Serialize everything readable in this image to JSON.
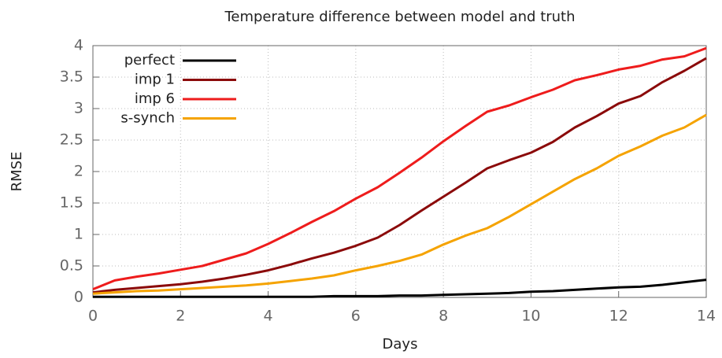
{
  "chart_data": {
    "type": "line",
    "title": "Temperature difference between model and truth",
    "x_label": "Days",
    "y_label": "RMSE",
    "x": [
      0,
      0.5,
      1,
      1.5,
      2,
      2.5,
      3,
      3.5,
      4,
      4.5,
      5,
      5.5,
      6,
      6.5,
      7,
      7.5,
      8,
      8.5,
      9,
      9.5,
      10,
      10.5,
      11,
      11.5,
      12,
      12.5,
      13,
      13.5,
      14
    ],
    "series": [
      {
        "name": "perfect",
        "color": "#000000",
        "values": [
          0.01,
          0.01,
          0.01,
          0.01,
          0.01,
          0.01,
          0.01,
          0.01,
          0.01,
          0.01,
          0.01,
          0.02,
          0.02,
          0.02,
          0.03,
          0.03,
          0.04,
          0.05,
          0.06,
          0.07,
          0.09,
          0.1,
          0.12,
          0.14,
          0.16,
          0.17,
          0.2,
          0.24,
          0.28
        ]
      },
      {
        "name": "imp 1",
        "color": "#8b0a0a",
        "values": [
          0.08,
          0.12,
          0.15,
          0.18,
          0.21,
          0.25,
          0.3,
          0.36,
          0.43,
          0.52,
          0.62,
          0.71,
          0.82,
          0.95,
          1.15,
          1.38,
          1.6,
          1.82,
          2.05,
          2.18,
          2.3,
          2.47,
          2.7,
          2.88,
          3.08,
          3.2,
          3.42,
          3.6,
          3.8
        ]
      },
      {
        "name": "imp 6",
        "color": "#ee1c1c",
        "values": [
          0.13,
          0.27,
          0.33,
          0.38,
          0.44,
          0.5,
          0.6,
          0.7,
          0.85,
          1.02,
          1.2,
          1.37,
          1.57,
          1.75,
          1.98,
          2.22,
          2.48,
          2.72,
          2.95,
          3.05,
          3.18,
          3.3,
          3.45,
          3.53,
          3.62,
          3.68,
          3.78,
          3.83,
          3.96
        ]
      },
      {
        "name": "s-synch",
        "color": "#f5a300",
        "values": [
          0.06,
          0.08,
          0.1,
          0.11,
          0.13,
          0.15,
          0.17,
          0.19,
          0.22,
          0.26,
          0.3,
          0.35,
          0.43,
          0.5,
          0.58,
          0.68,
          0.84,
          0.98,
          1.1,
          1.28,
          1.48,
          1.68,
          1.88,
          2.05,
          2.25,
          2.4,
          2.57,
          2.7,
          2.9
        ]
      }
    ],
    "xlim": [
      0,
      14
    ],
    "xticks": [
      0,
      2,
      4,
      6,
      8,
      10,
      12,
      14
    ],
    "ylim": [
      0,
      4
    ],
    "yticks": [
      0,
      0.5,
      1,
      1.5,
      2,
      2.5,
      3,
      3.5,
      4
    ],
    "grid": true,
    "legend": "top-left"
  }
}
